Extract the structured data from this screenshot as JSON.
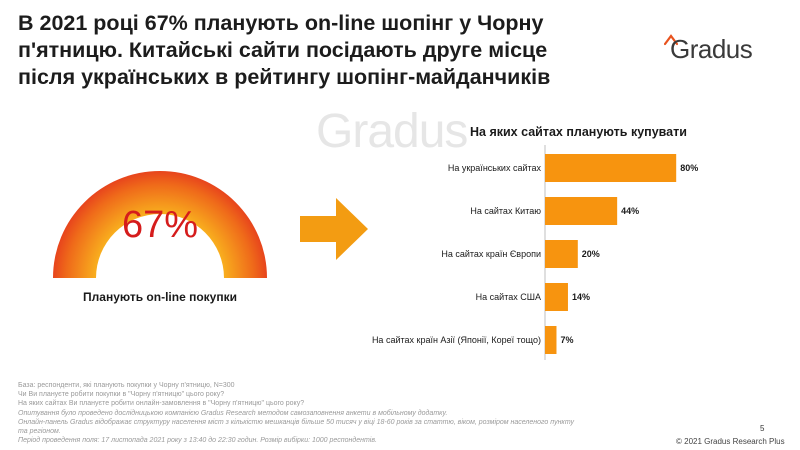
{
  "header": {
    "title_lines": [
      "В 2021 році 67%  планують on-line шопінг у Чорну",
      "п'ятницю. Китайські сайти посідають друге місце",
      "після українських в рейтингу шопінг-майданчиків"
    ],
    "logo_text": "Gradus",
    "logo_mark_color": "#e8531e"
  },
  "watermark": "Gradus",
  "gauge": {
    "value": 67,
    "value_label": "67%",
    "caption": "Планують on-line покупки",
    "colors": {
      "outer": "#e0201e",
      "inner": "#f7a21b",
      "text": "#d51c1c"
    }
  },
  "arrow": {
    "color": "#f39c12"
  },
  "chart_data": {
    "type": "bar",
    "orientation": "horizontal",
    "title": "На яких сайтах  планують купувати",
    "categories": [
      "На українських сайтах",
      "На сайтах Китаю",
      "На сайтах країн Європи",
      "На сайтах США",
      "На сайтах країн Азії (Японії, Кореї тощо)"
    ],
    "values": [
      80,
      44,
      20,
      14,
      7
    ],
    "value_labels": [
      "80%",
      "44%",
      "20%",
      "14%",
      "7%"
    ],
    "bar_color": "#f7940f",
    "xlim": [
      0,
      100
    ],
    "grid": false
  },
  "notes": {
    "base": "База: респонденти,  які  планують покупки у Чорну  п'ятницю,  N=300",
    "q1": "Чи Ви плануєте робити покупки в \"Чорну п'ятницю\" цього року?",
    "q2": "На яких сайтах Ви плануєте робити онлайн-замовлення в \"Чорну п'ятницю\" цього року?",
    "method": "Опитування  було проведено  дослідницькою  компанією  Gradus  Research  методом  самозаповнення  анкети  в мобільному  додатку.",
    "panel": "Онлайн-панель Gradus відображає структуру населення міст з кількістю мешканців більше 50 тисяч у віці 18-60 років за статтю, віком, розміром населеного пункту та регіоном.",
    "period": "Період  проведення  поля:  17  листопада  2021  року  з 13:40  до 22:30  годин.  Розмір вибірки:  1000 респондентів."
  },
  "footer": {
    "page_number": "5",
    "copyright": "© 2021 Gradus Research Plus"
  }
}
